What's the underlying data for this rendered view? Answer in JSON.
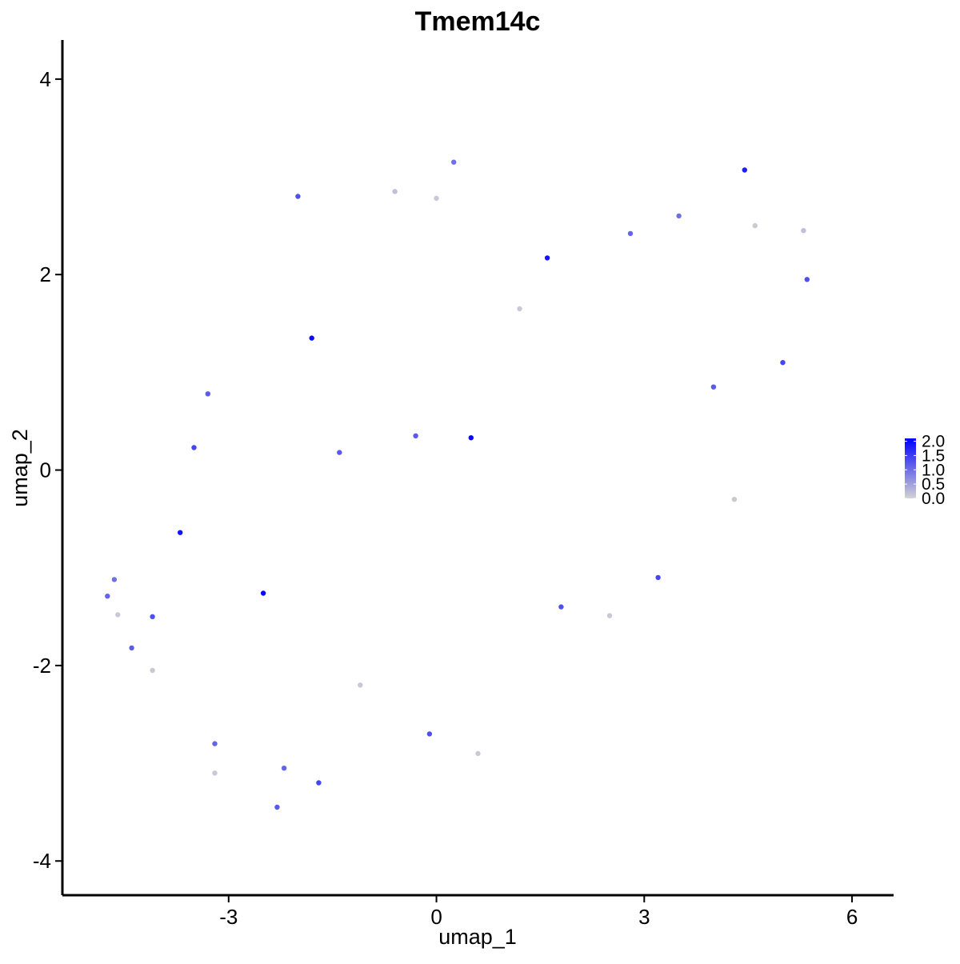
{
  "chart_data": {
    "type": "scatter",
    "title": "Tmem14c",
    "xlabel": "umap_1",
    "ylabel": "umap_2",
    "xlim": [
      -5.4,
      6.6
    ],
    "ylim": [
      -4.35,
      4.4
    ],
    "x_ticks": [
      -3,
      0,
      3,
      6
    ],
    "x_tick_labels": [
      "-3",
      "0",
      "3",
      "6"
    ],
    "y_ticks": [
      -4,
      -2,
      0,
      2,
      4
    ],
    "y_tick_labels": [
      "-4",
      "-2",
      "0",
      "2",
      "4"
    ],
    "grid": false,
    "legend": {
      "type": "colorbar",
      "placement": "right",
      "min": 0.0,
      "max": 2.1,
      "ticks": [
        0.0,
        0.5,
        1.0,
        1.5,
        2.0
      ],
      "tick_labels": [
        "0.0",
        "0.5",
        "1.0",
        "1.5",
        "2.0"
      ]
    },
    "colors": {
      "low": "#d3d3d3",
      "high": "#0000ff"
    },
    "points": [
      {
        "x": -4.75,
        "y": -1.29,
        "value": 1.1
      },
      {
        "x": -4.65,
        "y": -1.12,
        "value": 1.0
      },
      {
        "x": -4.6,
        "y": -1.48,
        "value": 0.1
      },
      {
        "x": -4.4,
        "y": -1.82,
        "value": 1.2
      },
      {
        "x": -4.1,
        "y": -1.5,
        "value": 1.3
      },
      {
        "x": -4.1,
        "y": -2.05,
        "value": 0.1
      },
      {
        "x": -3.7,
        "y": -0.64,
        "value": 1.9
      },
      {
        "x": -3.5,
        "y": 0.23,
        "value": 1.4
      },
      {
        "x": -3.3,
        "y": 0.78,
        "value": 1.2
      },
      {
        "x": -3.2,
        "y": -2.8,
        "value": 1.1
      },
      {
        "x": -3.2,
        "y": -3.1,
        "value": 0.1
      },
      {
        "x": -2.5,
        "y": -1.26,
        "value": 2.0
      },
      {
        "x": -2.3,
        "y": -3.45,
        "value": 1.2
      },
      {
        "x": -2.2,
        "y": -3.05,
        "value": 1.1
      },
      {
        "x": -2.0,
        "y": 2.8,
        "value": 1.3
      },
      {
        "x": -1.8,
        "y": 1.35,
        "value": 2.0
      },
      {
        "x": -1.7,
        "y": -3.2,
        "value": 1.4
      },
      {
        "x": -1.4,
        "y": 0.18,
        "value": 1.2
      },
      {
        "x": -1.1,
        "y": -2.2,
        "value": 0.1
      },
      {
        "x": -0.6,
        "y": 2.85,
        "value": 0.2
      },
      {
        "x": -0.3,
        "y": 0.35,
        "value": 1.2
      },
      {
        "x": -0.1,
        "y": -2.7,
        "value": 1.3
      },
      {
        "x": 0.0,
        "y": 2.78,
        "value": 0.1
      },
      {
        "x": 0.25,
        "y": 3.15,
        "value": 1.0
      },
      {
        "x": 0.5,
        "y": 0.33,
        "value": 2.0
      },
      {
        "x": 0.6,
        "y": -2.9,
        "value": 0.1
      },
      {
        "x": 1.2,
        "y": 1.65,
        "value": 0.1
      },
      {
        "x": 1.6,
        "y": 2.17,
        "value": 1.9
      },
      {
        "x": 1.8,
        "y": -1.4,
        "value": 1.3
      },
      {
        "x": 2.5,
        "y": -1.49,
        "value": 0.1
      },
      {
        "x": 2.8,
        "y": 2.42,
        "value": 1.1
      },
      {
        "x": 3.2,
        "y": -1.1,
        "value": 1.4
      },
      {
        "x": 3.5,
        "y": 2.6,
        "value": 1.0
      },
      {
        "x": 4.0,
        "y": 0.85,
        "value": 1.2
      },
      {
        "x": 4.3,
        "y": -0.3,
        "value": 0.1
      },
      {
        "x": 4.45,
        "y": 3.07,
        "value": 1.8
      },
      {
        "x": 4.6,
        "y": 2.5,
        "value": 0.1
      },
      {
        "x": 5.0,
        "y": 1.1,
        "value": 1.4
      },
      {
        "x": 5.3,
        "y": 2.45,
        "value": 0.2
      },
      {
        "x": 5.35,
        "y": 1.95,
        "value": 1.3
      }
    ]
  }
}
